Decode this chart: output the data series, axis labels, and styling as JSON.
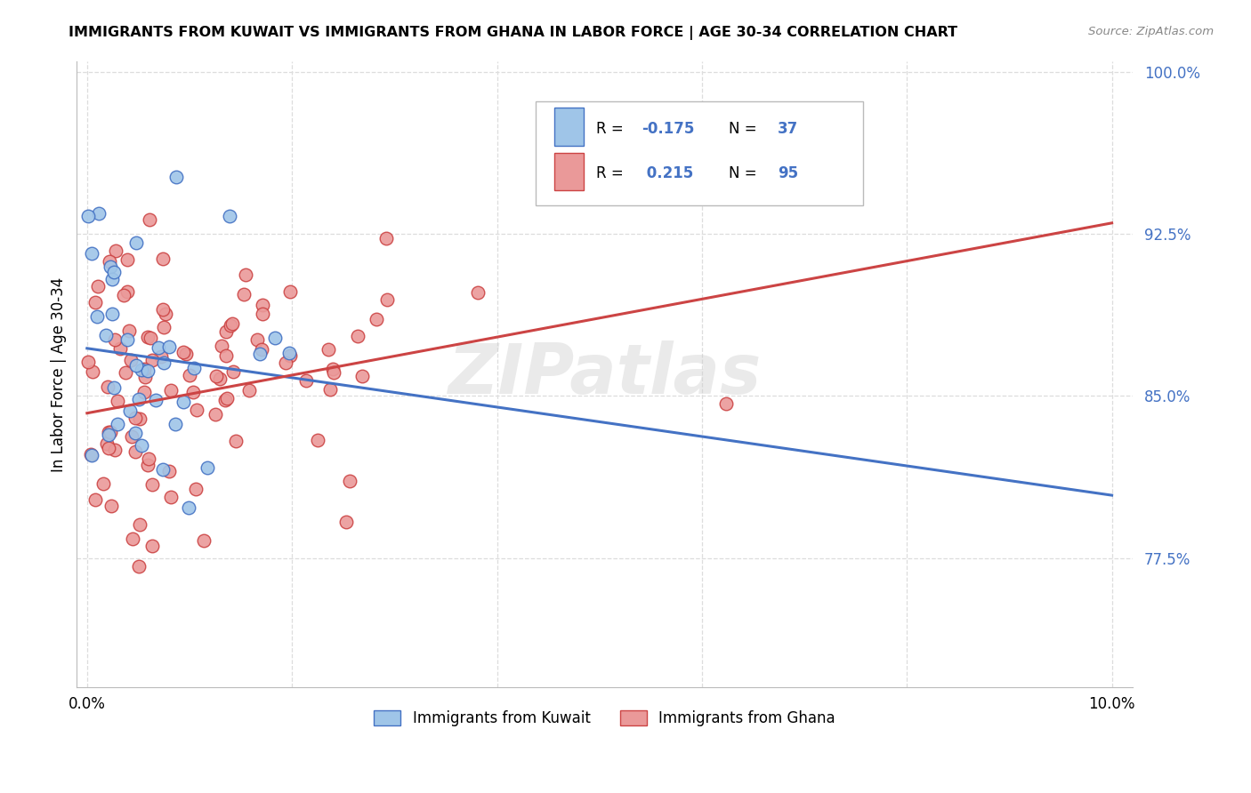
{
  "title": "IMMIGRANTS FROM KUWAIT VS IMMIGRANTS FROM GHANA IN LABOR FORCE | AGE 30-34 CORRELATION CHART",
  "source": "Source: ZipAtlas.com",
  "ylabel_label": "In Labor Force | Age 30-34",
  "y_ticks": [
    0.775,
    0.85,
    0.925,
    1.0
  ],
  "y_tick_labels": [
    "77.5%",
    "85.0%",
    "92.5%",
    "100.0%"
  ],
  "x_tick_positions": [
    0.0,
    0.02,
    0.04,
    0.06,
    0.08,
    0.1
  ],
  "x_tick_labels": [
    "0.0%",
    "",
    "",
    "",
    "",
    "10.0%"
  ],
  "kuwait_R": -0.175,
  "kuwait_N": 37,
  "ghana_R": 0.215,
  "ghana_N": 95,
  "legend_label_kuwait": "Immigrants from Kuwait",
  "legend_label_ghana": "Immigrants from Ghana",
  "color_kuwait": "#9fc5e8",
  "color_ghana": "#ea9999",
  "line_color_kuwait": "#4472c4",
  "line_color_ghana": "#cc4444",
  "watermark": "ZIPatlas",
  "kuwait_line_y0": 0.872,
  "kuwait_line_y1": 0.804,
  "ghana_line_y0": 0.842,
  "ghana_line_y1": 0.93,
  "x_min": 0.0,
  "x_max": 0.1,
  "y_min": 0.715,
  "y_max": 1.005
}
